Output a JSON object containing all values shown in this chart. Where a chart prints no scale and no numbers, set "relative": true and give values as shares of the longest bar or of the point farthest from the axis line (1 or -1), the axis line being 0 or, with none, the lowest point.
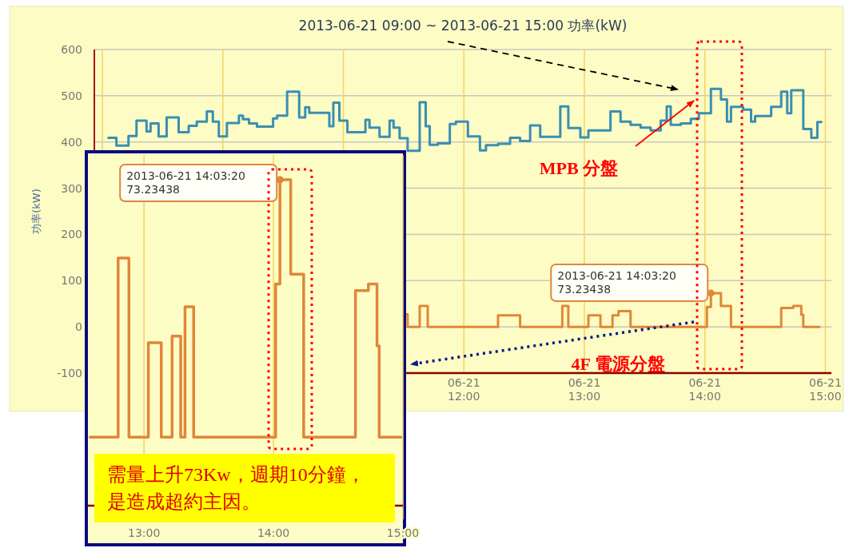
{
  "chart_data": [
    {
      "type": "step",
      "title": "2013-06-21 09:00 ~ 2013-06-21 15:00 功率(kW)",
      "ylabel": "功率(kW)",
      "xlim": [
        "2013-06-21T08:56",
        "2013-06-21T15:03"
      ],
      "ylim": [
        -100,
        600
      ],
      "xticks": [
        {
          "value": "2013-06-21T09:00",
          "label": null
        },
        {
          "value": "2013-06-21T10:00",
          "label": null
        },
        {
          "value": "2013-06-21T11:00",
          "label": null
        },
        {
          "value": "2013-06-21T12:00",
          "label": "06-21\n12:00"
        },
        {
          "value": "2013-06-21T13:00",
          "label": "06-21\n13:00"
        },
        {
          "value": "2013-06-21T14:00",
          "label": "06-21\n14:00"
        },
        {
          "value": "2013-06-21T15:00",
          "label": "06-21\n15:00"
        }
      ],
      "yticks": [
        600,
        500,
        400,
        300,
        200,
        100,
        0,
        -100
      ],
      "grid": true,
      "series": [
        {
          "name": "MPB 分盤",
          "color": "#3a8fb2",
          "x": [
            "2013-06-21T09:03",
            "2013-06-21T09:07",
            "2013-06-21T09:13",
            "2013-06-21T09:17",
            "2013-06-21T09:22",
            "2013-06-21T09:24",
            "2013-06-21T09:28",
            "2013-06-21T09:32",
            "2013-06-21T09:38",
            "2013-06-21T09:43",
            "2013-06-21T09:47",
            "2013-06-21T09:52",
            "2013-06-21T09:55",
            "2013-06-21T09:58",
            "2013-06-21T10:02",
            "2013-06-21T10:08",
            "2013-06-21T10:10",
            "2013-06-21T10:13",
            "2013-06-21T10:17",
            "2013-06-21T10:25",
            "2013-06-21T10:27",
            "2013-06-21T10:32",
            "2013-06-21T10:38",
            "2013-06-21T10:41",
            "2013-06-21T10:43",
            "2013-06-21T10:53",
            "2013-06-21T10:55",
            "2013-06-21T10:58",
            "2013-06-21T11:02",
            "2013-06-21T11:11",
            "2013-06-21T11:13",
            "2013-06-21T11:18",
            "2013-06-21T11:23",
            "2013-06-21T11:25",
            "2013-06-21T11:28",
            "2013-06-21T11:32",
            "2013-06-21T11:38",
            "2013-06-21T11:41",
            "2013-06-21T11:43",
            "2013-06-21T11:47",
            "2013-06-21T11:53",
            "2013-06-21T11:56",
            "2013-06-21T12:02",
            "2013-06-21T12:08",
            "2013-06-21T12:11",
            "2013-06-21T12:17",
            "2013-06-21T12:23",
            "2013-06-21T12:28",
            "2013-06-21T12:33",
            "2013-06-21T12:38",
            "2013-06-21T12:48",
            "2013-06-21T12:52",
            "2013-06-21T12:58",
            "2013-06-21T13:02",
            "2013-06-21T13:13",
            "2013-06-21T13:18",
            "2013-06-21T13:23",
            "2013-06-21T13:28",
            "2013-06-21T13:33",
            "2013-06-21T13:38",
            "2013-06-21T13:41",
            "2013-06-21T13:43",
            "2013-06-21T13:48",
            "2013-06-21T13:53",
            "2013-06-21T13:57",
            "2013-06-21T14:03",
            "2013-06-21T14:08",
            "2013-06-21T14:11",
            "2013-06-21T14:13",
            "2013-06-21T14:19",
            "2013-06-21T14:23",
            "2013-06-21T14:25",
            "2013-06-21T14:33",
            "2013-06-21T14:38",
            "2013-06-21T14:41",
            "2013-06-21T14:43",
            "2013-06-21T14:49",
            "2013-06-21T14:53",
            "2013-06-21T14:56",
            "2013-06-21T14:58"
          ],
          "values": [
            409,
            392,
            413,
            446,
            423,
            440,
            412,
            453,
            421,
            435,
            444,
            466,
            444,
            412,
            441,
            457,
            449,
            440,
            433,
            451,
            457,
            509,
            453,
            475,
            463,
            434,
            485,
            446,
            421,
            448,
            431,
            411,
            446,
            431,
            408,
            381,
            486,
            434,
            394,
            397,
            439,
            444,
            412,
            382,
            393,
            396,
            409,
            402,
            436,
            411,
            477,
            430,
            410,
            425,
            466,
            444,
            437,
            431,
            425,
            446,
            477,
            437,
            440,
            450,
            462,
            515,
            492,
            444,
            476,
            470,
            444,
            456,
            476,
            509,
            462,
            512,
            428,
            409,
            443,
            443
          ]
        },
        {
          "name": "4F 電源分盤",
          "color": "#e0873a",
          "x": [
            "2013-06-21T11:31",
            "2013-06-21T11:32",
            "2013-06-21T11:38",
            "2013-06-21T11:42",
            "2013-06-21T12:17",
            "2013-06-21T12:28",
            "2013-06-21T12:49",
            "2013-06-21T12:52",
            "2013-06-21T13:02",
            "2013-06-21T13:08",
            "2013-06-21T13:14",
            "2013-06-21T13:17",
            "2013-06-21T13:23",
            "2013-06-21T14:01",
            "2013-06-21T14:03",
            "2013-06-21T14:08",
            "2013-06-21T14:13",
            "2013-06-21T14:38",
            "2013-06-21T14:44",
            "2013-06-21T14:48",
            "2013-06-21T14:49",
            "2013-06-21T14:57"
          ],
          "values": [
            27,
            0,
            45,
            0,
            25,
            0,
            45,
            0,
            25,
            0,
            25,
            34,
            0,
            43,
            73,
            45,
            0,
            41,
            45,
            26,
            0,
            0
          ]
        }
      ],
      "annotations": [
        "2013-06-21 14:03:20\n73.23438"
      ]
    },
    {
      "type": "step",
      "relative": true,
      "xlim": [
        "2013-06-21T12:34",
        "2013-06-21T15:00"
      ],
      "xticks": [
        {
          "value": "2013-06-21T13:00",
          "label": "13:00"
        },
        {
          "value": "2013-06-21T14:00",
          "label": "14:00"
        },
        {
          "value": "2013-06-21T15:00",
          "label": "15:00"
        }
      ],
      "grid": "x",
      "series": [
        {
          "color": "#e0873a",
          "x": [
            "2013-06-21T12:35",
            "2013-06-21T12:48",
            "2013-06-21T12:53",
            "2013-06-21T13:02",
            "2013-06-21T13:08",
            "2013-06-21T13:13",
            "2013-06-21T13:17",
            "2013-06-21T13:19",
            "2013-06-21T13:23",
            "2013-06-21T14:01",
            "2013-06-21T14:03",
            "2013-06-21T14:08",
            "2013-06-21T14:14",
            "2013-06-21T14:38",
            "2013-06-21T14:44",
            "2013-06-21T14:48",
            "2013-06-21T14:49",
            "2013-06-21T14:59"
          ],
          "values": [
            0.21,
            0.76,
            0.21,
            0.5,
            0.21,
            0.52,
            0.21,
            0.61,
            0.21,
            0.68,
            1,
            0.71,
            0.21,
            0.66,
            0.68,
            0.49,
            0.21,
            0.21
          ]
        }
      ],
      "annotations": [
        "2013-06-21 14:03:20\n73.23438",
        "需量上升73Kw，週期10分鐘，是造成超約主因。"
      ]
    }
  ]
}
